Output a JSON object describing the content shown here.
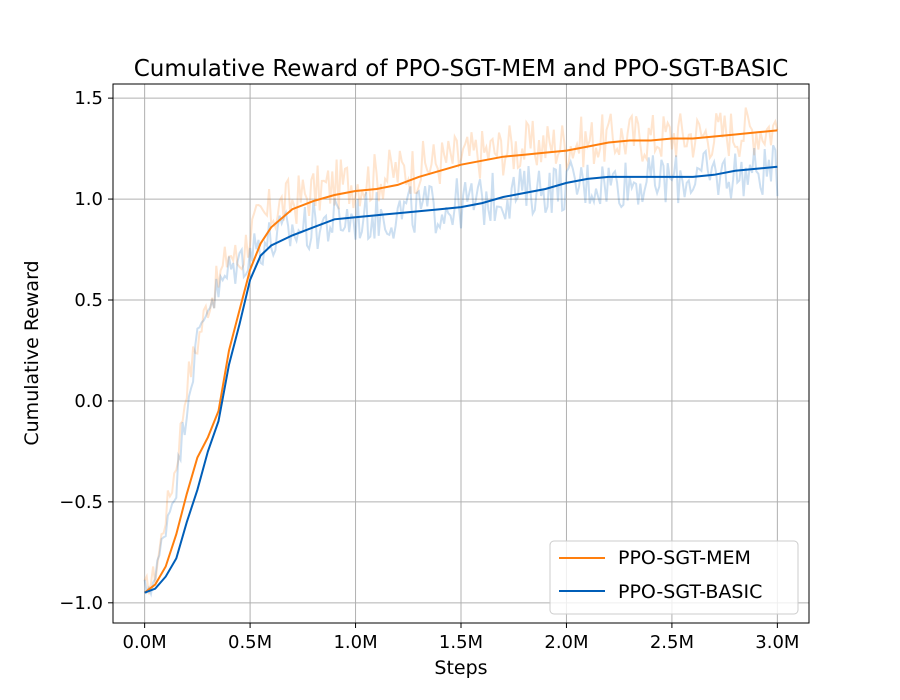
{
  "chart_data": {
    "type": "line",
    "title": "Cumulative Reward of PPO-SGT-MEM and PPO-SGT-BASIC",
    "xlabel": "Steps",
    "ylabel": "Cumulative Reward",
    "xlim": [
      -150000,
      3150000
    ],
    "ylim": [
      -1.1,
      1.57
    ],
    "xticks": [
      0,
      500000,
      1000000,
      1500000,
      2000000,
      2500000,
      3000000
    ],
    "xtick_labels": [
      "0.0M",
      "0.5M",
      "1.0M",
      "1.5M",
      "2.0M",
      "2.5M",
      "3.0M"
    ],
    "yticks": [
      -1.0,
      -0.5,
      0.0,
      0.5,
      1.0,
      1.5
    ],
    "ytick_labels": [
      "−1.0",
      "−0.5",
      "0.0",
      "0.5",
      "1.0",
      "1.5"
    ],
    "grid": true,
    "legend_position": "lower-right",
    "series": [
      {
        "name": "PPO-SGT-MEM",
        "color": "#ff7f0e",
        "raw_alpha": 0.2,
        "x": [
          0,
          50000,
          100000,
          150000,
          200000,
          250000,
          300000,
          350000,
          400000,
          450000,
          500000,
          550000,
          600000,
          700000,
          800000,
          900000,
          1000000,
          1100000,
          1200000,
          1300000,
          1400000,
          1500000,
          1600000,
          1700000,
          1800000,
          1900000,
          2000000,
          2100000,
          2200000,
          2300000,
          2400000,
          2500000,
          2600000,
          2700000,
          2800000,
          2900000,
          3000000
        ],
        "smoothed": [
          -0.95,
          -0.91,
          -0.82,
          -0.66,
          -0.46,
          -0.28,
          -0.18,
          -0.05,
          0.25,
          0.45,
          0.65,
          0.78,
          0.86,
          0.95,
          0.99,
          1.02,
          1.04,
          1.05,
          1.07,
          1.11,
          1.14,
          1.17,
          1.19,
          1.21,
          1.22,
          1.23,
          1.24,
          1.26,
          1.28,
          1.29,
          1.29,
          1.3,
          1.3,
          1.31,
          1.32,
          1.33,
          1.34
        ],
        "raw": [
          -0.93,
          -0.85,
          -0.55,
          -0.3,
          0.1,
          0.3,
          0.5,
          0.6,
          0.75,
          0.7,
          0.85,
          0.9,
          0.95,
          1.0,
          1.05,
          1.08,
          1.1,
          1.12,
          1.15,
          1.17,
          1.2,
          1.22,
          1.24,
          1.26,
          1.27,
          1.28,
          1.29,
          1.3,
          1.31,
          1.32,
          1.32,
          1.33,
          1.33,
          1.34,
          1.35,
          1.36,
          1.37
        ]
      },
      {
        "name": "PPO-SGT-BASIC",
        "color": "#005eb8",
        "raw_alpha": 0.2,
        "x": [
          0,
          50000,
          100000,
          150000,
          200000,
          250000,
          300000,
          350000,
          400000,
          450000,
          500000,
          550000,
          600000,
          700000,
          800000,
          900000,
          1000000,
          1100000,
          1200000,
          1300000,
          1400000,
          1500000,
          1600000,
          1700000,
          1800000,
          1900000,
          2000000,
          2100000,
          2200000,
          2300000,
          2400000,
          2500000,
          2600000,
          2700000,
          2800000,
          2900000,
          3000000
        ],
        "smoothed": [
          -0.95,
          -0.93,
          -0.87,
          -0.78,
          -0.6,
          -0.44,
          -0.25,
          -0.1,
          0.18,
          0.38,
          0.6,
          0.72,
          0.77,
          0.82,
          0.86,
          0.9,
          0.91,
          0.92,
          0.93,
          0.94,
          0.95,
          0.96,
          0.98,
          1.01,
          1.03,
          1.05,
          1.08,
          1.1,
          1.11,
          1.11,
          1.11,
          1.11,
          1.11,
          1.12,
          1.14,
          1.15,
          1.16
        ],
        "raw": [
          -0.93,
          -0.88,
          -0.6,
          -0.4,
          0.0,
          0.3,
          0.5,
          0.55,
          0.65,
          0.7,
          0.75,
          0.8,
          0.8,
          0.85,
          0.88,
          0.9,
          0.92,
          0.93,
          0.94,
          0.96,
          0.97,
          0.99,
          1.0,
          1.03,
          1.05,
          1.07,
          1.08,
          1.09,
          1.1,
          1.1,
          1.1,
          1.11,
          1.12,
          1.13,
          1.14,
          1.15,
          1.15
        ]
      }
    ]
  }
}
